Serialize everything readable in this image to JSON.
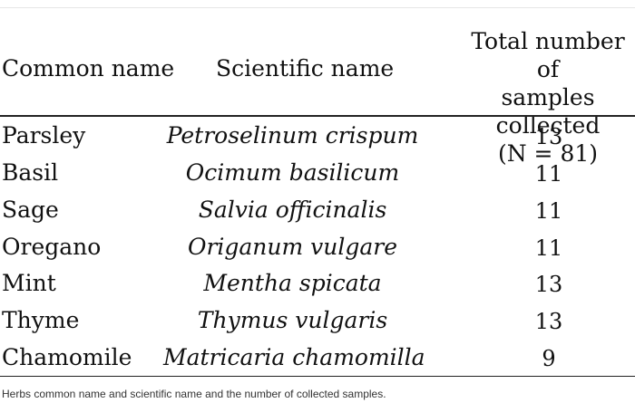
{
  "table": {
    "headers": {
      "common_name": "Common name",
      "scientific_name": "Scientific name",
      "total_line1": "Total number of",
      "total_line2": "samples collected",
      "total_line3": "(N = 81)"
    },
    "rows": [
      {
        "common": "Parsley",
        "scientific": "Petroselinum crispum",
        "total": "13"
      },
      {
        "common": "Basil",
        "scientific": "Ocimum basilicum",
        "total": "11"
      },
      {
        "common": "Sage",
        "scientific": "Salvia officinalis",
        "total": "11"
      },
      {
        "common": "Oregano",
        "scientific": "Origanum vulgare",
        "total": "11"
      },
      {
        "common": "Mint",
        "scientific": "Mentha spicata",
        "total": "13"
      },
      {
        "common": "Thyme",
        "scientific": "Thymus vulgaris",
        "total": "13"
      },
      {
        "common": "Chamomile",
        "scientific": "Matricaria chamomilla",
        "total": "9"
      }
    ]
  },
  "caption": "Herbs common name and scientific name and the number of collected samples."
}
